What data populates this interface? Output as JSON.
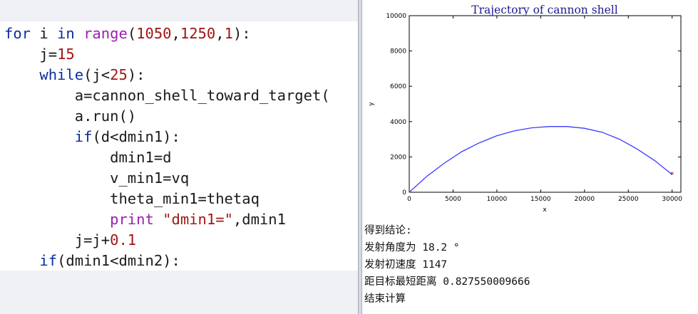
{
  "code": {
    "lines": [
      [
        {
          "t": "for ",
          "c": "kw"
        },
        {
          "t": "i ",
          "c": ""
        },
        {
          "t": "in ",
          "c": "kw"
        },
        {
          "t": "range",
          "c": "fn"
        },
        {
          "t": "(",
          "c": ""
        },
        {
          "t": "1050",
          "c": "num"
        },
        {
          "t": ",",
          "c": ""
        },
        {
          "t": "1250",
          "c": "num"
        },
        {
          "t": ",",
          "c": ""
        },
        {
          "t": "1",
          "c": "num"
        },
        {
          "t": "):",
          "c": ""
        }
      ],
      [
        {
          "t": "    j=",
          "c": ""
        },
        {
          "t": "15",
          "c": "num"
        }
      ],
      [
        {
          "t": "    ",
          "c": ""
        },
        {
          "t": "while",
          "c": "kw"
        },
        {
          "t": "(j<",
          "c": ""
        },
        {
          "t": "25",
          "c": "num"
        },
        {
          "t": "):",
          "c": ""
        }
      ],
      [
        {
          "t": "        a=cannon_shell_toward_target(",
          "c": ""
        }
      ],
      [
        {
          "t": "        a.run()",
          "c": ""
        }
      ],
      [
        {
          "t": "        ",
          "c": ""
        },
        {
          "t": "if",
          "c": "kw"
        },
        {
          "t": "(d<dmin1):",
          "c": ""
        }
      ],
      [
        {
          "t": "            dmin1=d",
          "c": ""
        }
      ],
      [
        {
          "t": "            v_min1=vq",
          "c": ""
        }
      ],
      [
        {
          "t": "            theta_min1=thetaq",
          "c": ""
        }
      ],
      [
        {
          "t": "            ",
          "c": ""
        },
        {
          "t": "print ",
          "c": "fn"
        },
        {
          "t": "\"dmin1=\"",
          "c": "str"
        },
        {
          "t": ",dmin1",
          "c": ""
        }
      ],
      [
        {
          "t": "        j=j+",
          "c": ""
        },
        {
          "t": "0.1",
          "c": "num"
        }
      ],
      [
        {
          "t": "    ",
          "c": ""
        },
        {
          "t": "if",
          "c": "kw"
        },
        {
          "t": "(dmin1<dmin2):",
          "c": ""
        }
      ]
    ]
  },
  "chart_data": {
    "type": "line",
    "title": "Trajectory of cannon shell",
    "xlabel": "x",
    "ylabel": "y",
    "xlim": [
      0,
      31000
    ],
    "ylim": [
      0,
      10000
    ],
    "xticks": [
      0,
      5000,
      10000,
      15000,
      20000,
      25000,
      30000
    ],
    "yticks": [
      0,
      2000,
      4000,
      6000,
      8000,
      10000
    ],
    "grid": false,
    "series": [
      {
        "color": "#3b3bff",
        "x": [
          0,
          2000,
          4000,
          6000,
          8000,
          10000,
          12000,
          14000,
          16000,
          18000,
          20000,
          22000,
          24000,
          26000,
          28000,
          30000
        ],
        "y": [
          0,
          900,
          1650,
          2300,
          2800,
          3200,
          3480,
          3650,
          3720,
          3720,
          3620,
          3400,
          3000,
          2450,
          1800,
          1000
        ]
      }
    ],
    "target": {
      "x": 30000,
      "y": 1000,
      "color": "#8b1a1a"
    }
  },
  "output": {
    "lines": [
      "得到结论:",
      "发射角度为 18.2 °",
      "发射初速度 1147",
      "距目标最短距离 0.827550009666",
      "结束计算"
    ]
  }
}
